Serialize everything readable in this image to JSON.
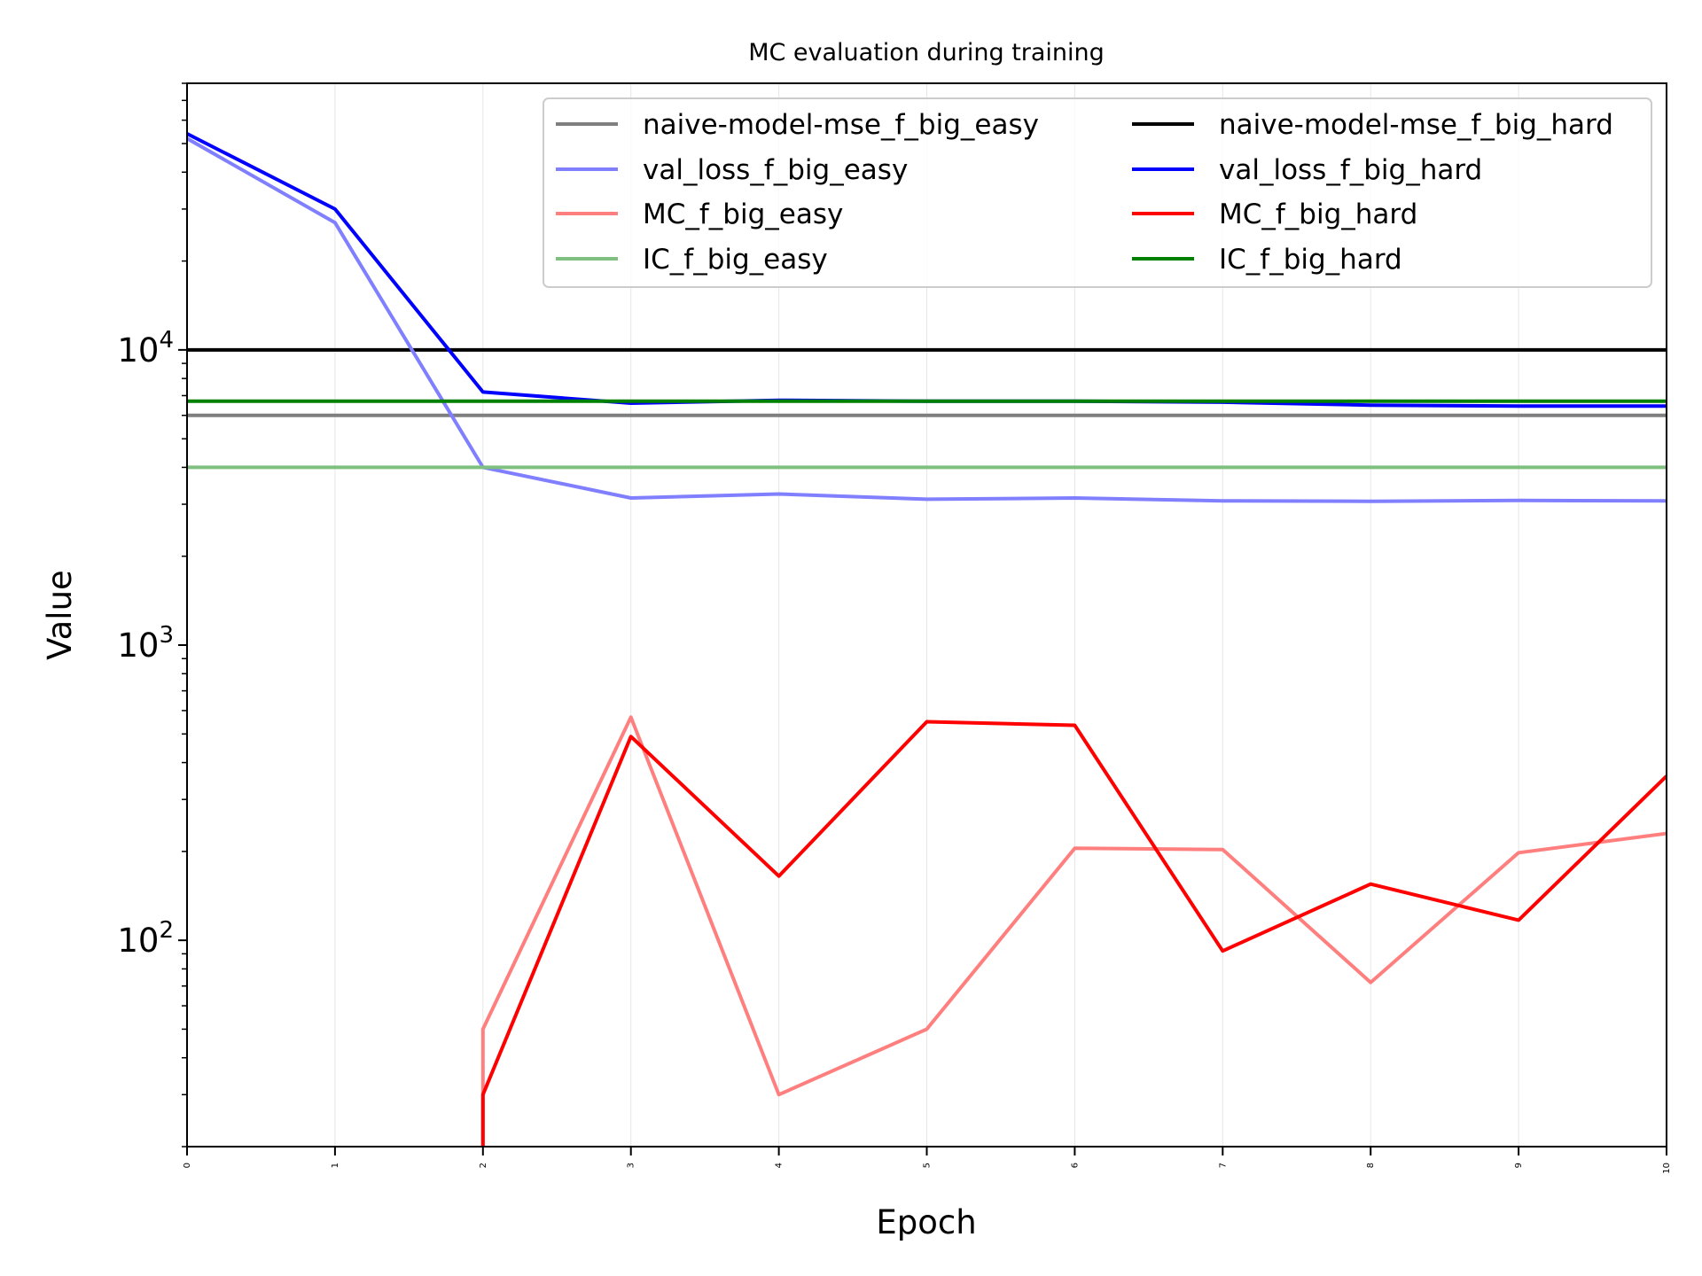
{
  "chart_data": {
    "type": "line",
    "title": "MC evaluation during training",
    "xlabel": "Epoch",
    "ylabel": "Value",
    "yscale": "log",
    "xlim": [
      0,
      10
    ],
    "ylim": [
      20,
      80000
    ],
    "x": [
      0,
      1,
      2,
      3,
      4,
      5,
      6,
      7,
      8,
      9,
      10
    ],
    "x_ticks": [
      "0",
      "1",
      "2",
      "3",
      "4",
      "5",
      "6",
      "7",
      "8",
      "9",
      "10"
    ],
    "y_ticks": [
      {
        "value": 100,
        "base": "10",
        "exp": "2"
      },
      {
        "value": 1000,
        "base": "10",
        "exp": "3"
      },
      {
        "value": 10000,
        "base": "10",
        "exp": "4"
      }
    ],
    "grid": "vertical, faint",
    "legend_position": "upper-right",
    "series": [
      {
        "name": "naive-model-mse_f_big_easy",
        "color": "#7f7f7f",
        "points": [
          [
            0,
            6000
          ],
          [
            10,
            6000
          ]
        ]
      },
      {
        "name": "naive-model-mse_f_big_hard",
        "color": "#000000",
        "points": [
          [
            0,
            10000
          ],
          [
            10,
            10000
          ]
        ]
      },
      {
        "name": "val_loss_f_big_easy",
        "color": "#7f7fff",
        "points": [
          [
            0,
            52000
          ],
          [
            1,
            27000
          ],
          [
            2,
            4000
          ],
          [
            3,
            3150
          ],
          [
            4,
            3250
          ],
          [
            5,
            3120
          ],
          [
            6,
            3150
          ],
          [
            7,
            3080
          ],
          [
            8,
            3070
          ],
          [
            9,
            3090
          ],
          [
            10,
            3080
          ]
        ]
      },
      {
        "name": "val_loss_f_big_hard",
        "color": "#0000ff",
        "points": [
          [
            0,
            54000
          ],
          [
            1,
            30000
          ],
          [
            2,
            7200
          ],
          [
            3,
            6600
          ],
          [
            4,
            6750
          ],
          [
            5,
            6700
          ],
          [
            6,
            6700
          ],
          [
            7,
            6650
          ],
          [
            8,
            6500
          ],
          [
            9,
            6450
          ],
          [
            10,
            6450
          ]
        ]
      },
      {
        "name": "MC_f_big_easy",
        "color": "#ff7f7f",
        "points": [
          [
            2,
            20
          ],
          [
            2,
            50
          ],
          [
            3,
            570
          ],
          [
            4,
            30
          ],
          [
            5,
            50
          ],
          [
            6,
            205
          ],
          [
            7,
            203
          ],
          [
            8,
            72
          ],
          [
            9,
            198
          ],
          [
            10,
            230
          ]
        ]
      },
      {
        "name": "MC_f_big_hard",
        "color": "#ff0000",
        "points": [
          [
            2,
            20
          ],
          [
            2,
            30
          ],
          [
            3,
            490
          ],
          [
            4,
            165
          ],
          [
            5,
            550
          ],
          [
            6,
            535
          ],
          [
            7,
            92
          ],
          [
            8,
            155
          ],
          [
            9,
            117
          ],
          [
            10,
            360
          ]
        ]
      },
      {
        "name": "IC_f_big_easy",
        "color": "#7fbf7f",
        "points": [
          [
            0,
            4000
          ],
          [
            10,
            4000
          ]
        ]
      },
      {
        "name": "IC_f_big_hard",
        "color": "#008000",
        "points": [
          [
            0,
            6700
          ],
          [
            10,
            6700
          ]
        ]
      }
    ]
  }
}
